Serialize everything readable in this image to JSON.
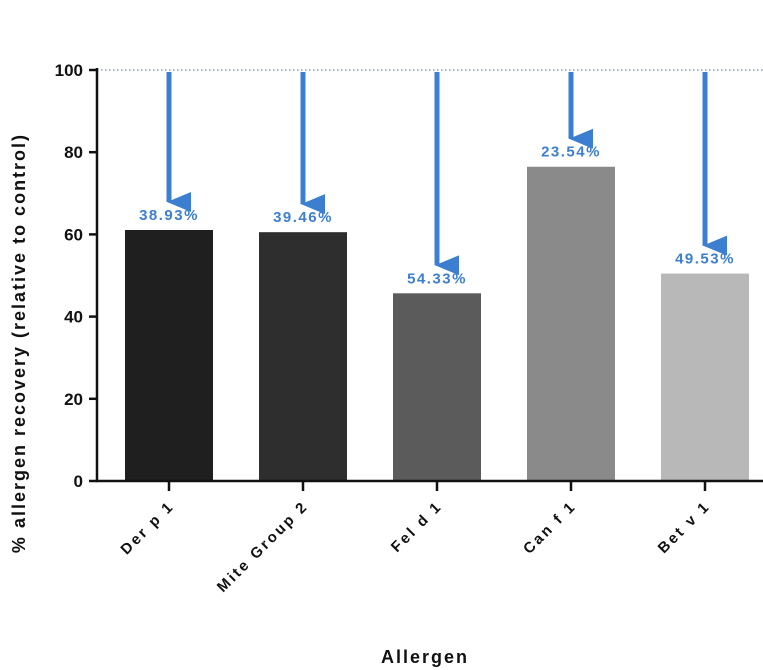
{
  "chart_data": {
    "type": "bar",
    "xlabel": "Allergen",
    "ylabel": "% allergen recovery (relative to control)",
    "ylim": [
      0,
      100
    ],
    "yticks": [
      0,
      20,
      40,
      60,
      80,
      100
    ],
    "categories": [
      "Der p 1",
      "Mite Group 2",
      "Fel d 1",
      "Can f 1",
      "Bet v 1"
    ],
    "values": [
      61.07,
      60.54,
      45.67,
      76.46,
      50.47
    ],
    "data_labels": [
      "38.93%",
      "39.46%",
      "54.33%",
      "23.54%",
      "49.53%"
    ],
    "reduction_percent": [
      38.93,
      39.46,
      54.33,
      23.54,
      49.53
    ],
    "reference_line": 100,
    "bar_colors": [
      "#1f1f1f",
      "#2e2e2e",
      "#5b5b5b",
      "#8a8a8a",
      "#b8b8b8"
    ],
    "arrow_color": "#3c7fd0",
    "label_color": "#3c7fd0",
    "grid": false
  }
}
